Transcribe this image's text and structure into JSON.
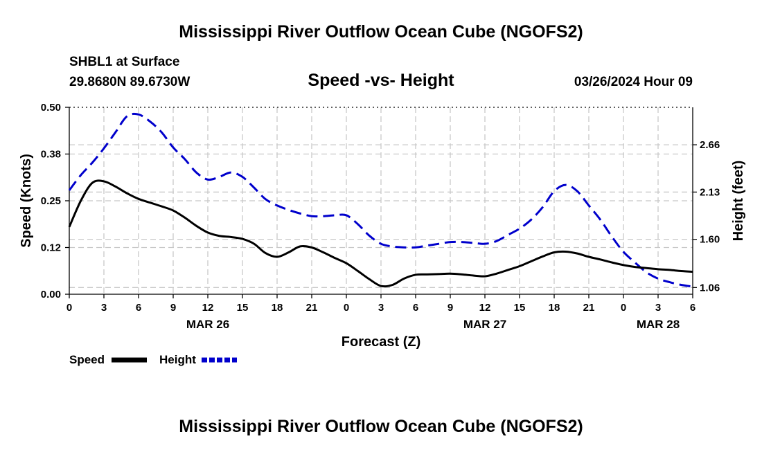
{
  "header": {
    "title": "Mississippi River Outflow Ocean Cube (NGOFS2)",
    "station": "SHBL1 at Surface",
    "coords": "29.8680N  89.6730W",
    "chart_title": "Speed -vs- Height",
    "timestamp": "03/26/2024 Hour 09"
  },
  "footer": {
    "title": "Mississippi River Outflow Ocean Cube (NGOFS2)"
  },
  "legend": {
    "speed_label": "Speed",
    "height_label": "Height"
  },
  "colors": {
    "speed": "#000000",
    "height": "#0000cc",
    "grid": "#c8c8c8"
  },
  "chart_data": {
    "type": "line",
    "title": "Speed -vs- Height",
    "xlabel": "Forecast (Z)",
    "ylabel_left": "Speed (Knots)",
    "ylabel_right": "Height (feet)",
    "x_unit": "hours since 00Z MAR 26",
    "xlim": [
      0,
      54
    ],
    "ylim_left": [
      0,
      0.5
    ],
    "ylim_right": [
      0.985,
      3.08
    ],
    "left_ticks": [
      {
        "value": 0.0,
        "label": "0.00"
      },
      {
        "value": 0.125,
        "label": "0.12"
      },
      {
        "value": 0.25,
        "label": "0.25"
      },
      {
        "value": 0.375,
        "label": "0.38"
      },
      {
        "value": 0.5,
        "label": "0.50"
      }
    ],
    "right_ticks": [
      {
        "value": 1.06,
        "label": "1.06"
      },
      {
        "value": 1.6,
        "label": "1.60"
      },
      {
        "value": 2.13,
        "label": "2.13"
      },
      {
        "value": 2.66,
        "label": "2.66"
      }
    ],
    "x_ticks": [
      {
        "value": 0,
        "label": "0"
      },
      {
        "value": 3,
        "label": "3"
      },
      {
        "value": 6,
        "label": "6"
      },
      {
        "value": 9,
        "label": "9"
      },
      {
        "value": 12,
        "label": "12"
      },
      {
        "value": 15,
        "label": "15"
      },
      {
        "value": 18,
        "label": "18"
      },
      {
        "value": 21,
        "label": "21"
      },
      {
        "value": 24,
        "label": "0"
      },
      {
        "value": 27,
        "label": "3"
      },
      {
        "value": 30,
        "label": "6"
      },
      {
        "value": 33,
        "label": "9"
      },
      {
        "value": 36,
        "label": "12"
      },
      {
        "value": 39,
        "label": "15"
      },
      {
        "value": 42,
        "label": "18"
      },
      {
        "value": 45,
        "label": "21"
      },
      {
        "value": 48,
        "label": "0"
      },
      {
        "value": 51,
        "label": "3"
      },
      {
        "value": 54,
        "label": "6"
      }
    ],
    "date_labels": [
      {
        "x": 12,
        "label": "MAR 26"
      },
      {
        "x": 36,
        "label": "MAR 27"
      },
      {
        "x": 51,
        "label": "MAR 28"
      }
    ],
    "series": [
      {
        "name": "Speed",
        "axis": "left",
        "style": "solid",
        "x": [
          0,
          1,
          2,
          3,
          4,
          5,
          6,
          7,
          8,
          9,
          10,
          11,
          12,
          13,
          14,
          15,
          16,
          17,
          18,
          19,
          20,
          21,
          22,
          23,
          24,
          25,
          26,
          27,
          28,
          29,
          30,
          31,
          32,
          33,
          34,
          35,
          36,
          37,
          38,
          39,
          40,
          41,
          42,
          43,
          44,
          45,
          46,
          47,
          48,
          49,
          50,
          51,
          52,
          53,
          54
        ],
        "values": [
          0.18,
          0.25,
          0.298,
          0.302,
          0.288,
          0.27,
          0.255,
          0.245,
          0.235,
          0.224,
          0.205,
          0.183,
          0.165,
          0.156,
          0.153,
          0.148,
          0.135,
          0.11,
          0.1,
          0.112,
          0.128,
          0.125,
          0.112,
          0.097,
          0.083,
          0.062,
          0.04,
          0.022,
          0.025,
          0.042,
          0.052,
          0.053,
          0.054,
          0.055,
          0.053,
          0.05,
          0.048,
          0.055,
          0.065,
          0.075,
          0.088,
          0.101,
          0.112,
          0.114,
          0.109,
          0.1,
          0.093,
          0.085,
          0.078,
          0.073,
          0.07,
          0.067,
          0.065,
          0.062,
          0.06
        ]
      },
      {
        "name": "Height",
        "axis": "right",
        "style": "dashed",
        "x": [
          0,
          1,
          2,
          3,
          4,
          5,
          6,
          7,
          8,
          9,
          10,
          11,
          12,
          13,
          14,
          15,
          16,
          17,
          18,
          19,
          20,
          21,
          22,
          23,
          24,
          25,
          26,
          27,
          28,
          29,
          30,
          31,
          32,
          33,
          34,
          35,
          36,
          37,
          38,
          39,
          40,
          41,
          42,
          43,
          44,
          45,
          46,
          47,
          48,
          49,
          50,
          51,
          52,
          53,
          54
        ],
        "values": [
          2.15,
          2.32,
          2.46,
          2.62,
          2.8,
          2.98,
          3.0,
          2.92,
          2.8,
          2.63,
          2.5,
          2.35,
          2.27,
          2.3,
          2.35,
          2.3,
          2.18,
          2.05,
          1.98,
          1.93,
          1.89,
          1.86,
          1.86,
          1.87,
          1.87,
          1.77,
          1.64,
          1.55,
          1.52,
          1.51,
          1.51,
          1.53,
          1.55,
          1.57,
          1.57,
          1.56,
          1.55,
          1.58,
          1.65,
          1.72,
          1.82,
          1.96,
          2.14,
          2.21,
          2.14,
          1.98,
          1.82,
          1.63,
          1.46,
          1.34,
          1.23,
          1.16,
          1.12,
          1.09,
          1.07
        ]
      }
    ]
  }
}
